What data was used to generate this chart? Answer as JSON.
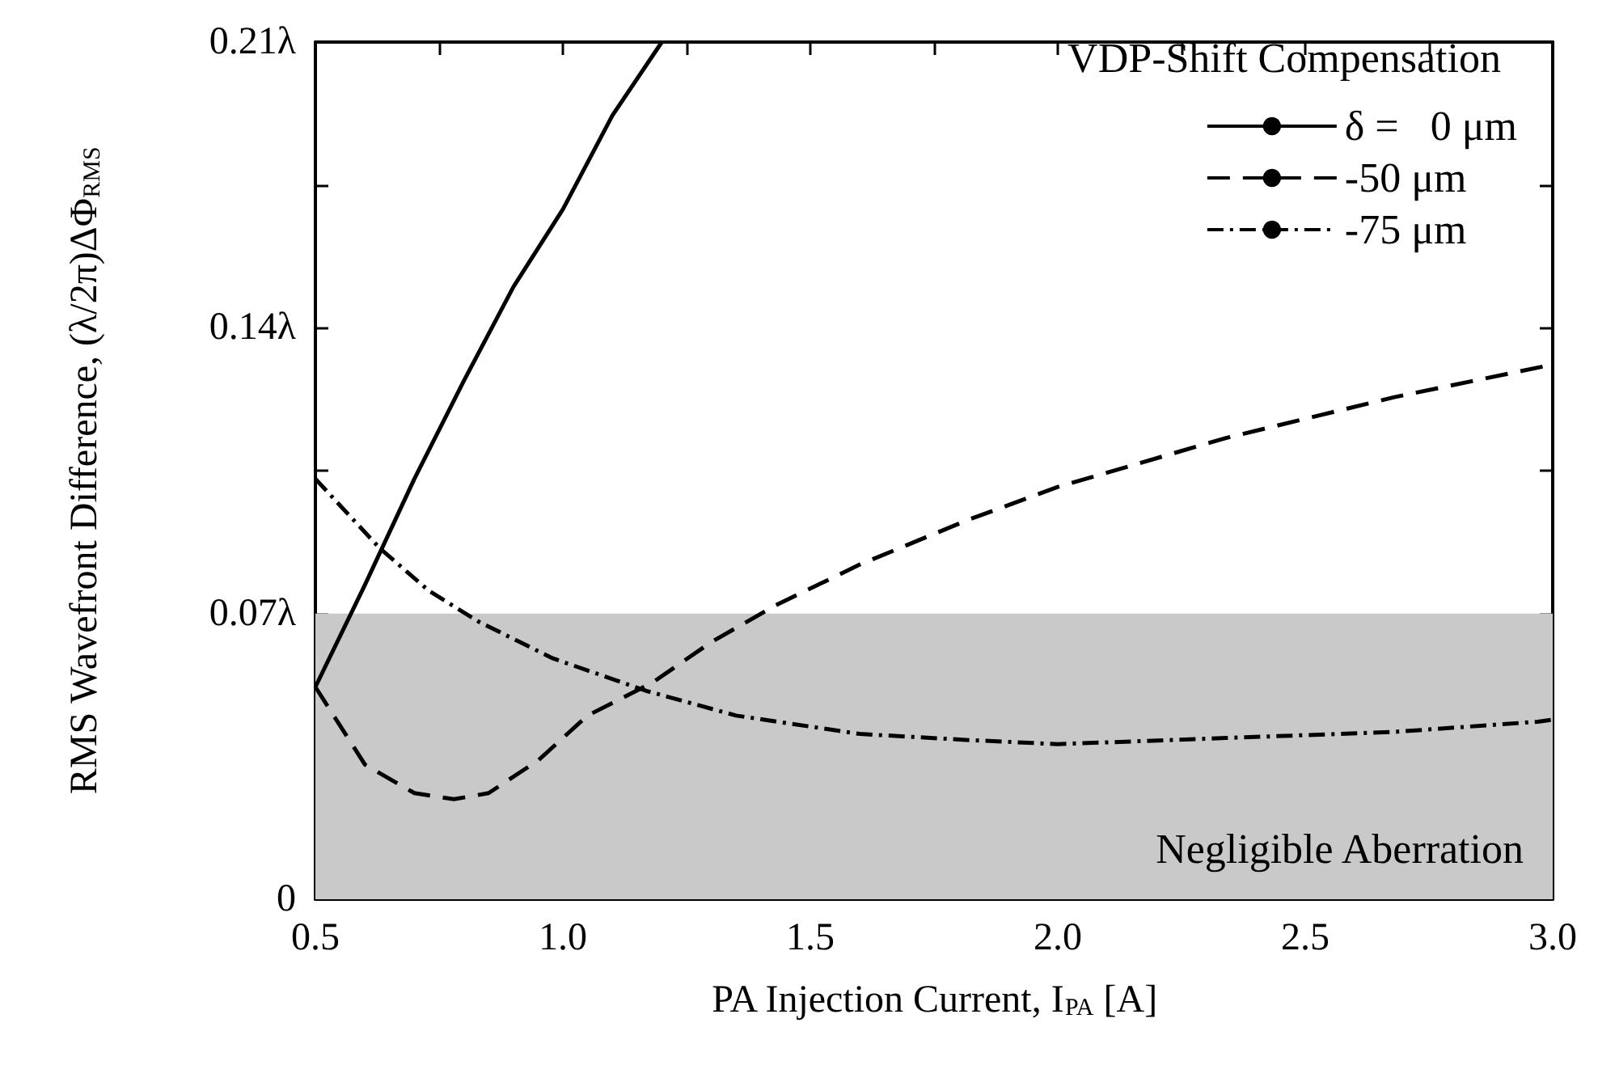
{
  "chart_data": {
    "type": "line",
    "xlabel": "PA Injection Current, I$_{PA}$ [A]",
    "ylabel": "RMS Wavefront Difference, (λ/2π)ΔΦ$_{RMS}$",
    "legend_title": "VDP-Shift Compensation",
    "legend": "top right",
    "grid": false,
    "marker": "none",
    "xlim": [
      0.5,
      3.0
    ],
    "xticks": [
      0.5,
      {
        "value": 0.75,
        "label": null
      },
      {
        "value": 1,
        "label": "1.0"
      },
      {
        "value": 1.25,
        "label": null
      },
      1.5,
      {
        "value": 1.75,
        "label": null
      },
      {
        "value": 2,
        "label": "2.0"
      },
      {
        "value": 2.25,
        "label": null
      },
      2.5,
      {
        "value": 2.75,
        "label": null
      },
      {
        "value": 3,
        "label": "3.0"
      }
    ],
    "ylim": [
      0,
      0.21
    ],
    "yticks": [
      0,
      {
        "value": 0.035,
        "label": null
      },
      {
        "value": 0.07,
        "label": "0.07λ"
      },
      {
        "value": 0.105,
        "label": null
      },
      {
        "value": 0.14,
        "label": "0.14λ"
      },
      {
        "value": 0.175,
        "label": null
      },
      {
        "value": 0.21,
        "label": "0.21λ"
      }
    ],
    "bands": [
      {
        "axis": "y",
        "from": 0,
        "to": 0.07,
        "label": "Negligible Aberration",
        "color": "#c9c9c9"
      }
    ],
    "series": [
      {
        "name": "δ =   0 μm",
        "color": "#000000",
        "line_style": "solid",
        "x": [
          0.5,
          0.6,
          0.7,
          0.8,
          0.9,
          1.0,
          1.1,
          1.2
        ],
        "values": [
          0.052,
          0.077,
          0.103,
          0.127,
          0.15,
          0.169,
          0.192,
          0.21
        ]
      },
      {
        "name": "-50 μm",
        "color": "#000000",
        "line_style": "dashed",
        "x": [
          0.5,
          0.6,
          0.7,
          0.78,
          0.85,
          0.95,
          1.05,
          1.18,
          1.3,
          1.43,
          1.6,
          1.82,
          2.0,
          2.34,
          2.68,
          3.0
        ],
        "values": [
          0.052,
          0.033,
          0.026,
          0.0245,
          0.026,
          0.034,
          0.045,
          0.053,
          0.063,
          0.072,
          0.082,
          0.093,
          0.101,
          0.113,
          0.123,
          0.131
        ]
      },
      {
        "name": "-75 μm",
        "color": "#000000",
        "line_style": "dashdot",
        "x": [
          0.5,
          0.63,
          0.73,
          0.83,
          0.98,
          1.17,
          1.35,
          1.6,
          1.82,
          2.0,
          2.34,
          2.68,
          2.97,
          3.0
        ],
        "values": [
          0.103,
          0.086,
          0.0755,
          0.068,
          0.059,
          0.051,
          0.045,
          0.0405,
          0.039,
          0.038,
          0.0395,
          0.041,
          0.0435,
          0.044
        ]
      }
    ]
  }
}
